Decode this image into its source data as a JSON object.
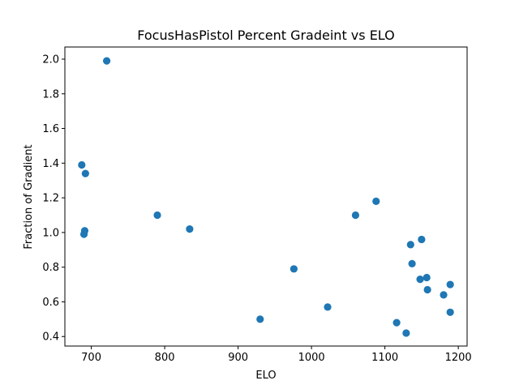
{
  "chart_data": {
    "type": "scatter",
    "title": "FocusHasPistol Percent Gradeint vs ELO",
    "xlabel": "ELO",
    "ylabel": "Fraction of Gradient",
    "xlim": [
      664,
      1212
    ],
    "ylim": [
      0.345,
      2.07
    ],
    "xticks": [
      700,
      800,
      900,
      1000,
      1100,
      1200
    ],
    "yticks": [
      0.4,
      0.6,
      0.8,
      1.0,
      1.2,
      1.4,
      1.6,
      1.8,
      2.0
    ],
    "xtick_labels": [
      "700",
      "800",
      "900",
      "1000",
      "1100",
      "1200"
    ],
    "ytick_labels": [
      "0.4",
      "0.6",
      "0.8",
      "1.0",
      "1.2",
      "1.4",
      "1.6",
      "1.8",
      "2.0"
    ],
    "grid": false,
    "legend": "none",
    "marker_color": "#1f77b4",
    "points": [
      {
        "x": 721,
        "y": 1.99
      },
      {
        "x": 687,
        "y": 1.39
      },
      {
        "x": 692,
        "y": 1.34
      },
      {
        "x": 790,
        "y": 1.1
      },
      {
        "x": 691,
        "y": 1.01
      },
      {
        "x": 690,
        "y": 0.99
      },
      {
        "x": 834,
        "y": 1.02
      },
      {
        "x": 930,
        "y": 0.5
      },
      {
        "x": 976,
        "y": 0.79
      },
      {
        "x": 1022,
        "y": 0.57
      },
      {
        "x": 1060,
        "y": 1.1
      },
      {
        "x": 1088,
        "y": 1.18
      },
      {
        "x": 1116,
        "y": 0.48
      },
      {
        "x": 1129,
        "y": 0.42
      },
      {
        "x": 1135,
        "y": 0.93
      },
      {
        "x": 1137,
        "y": 0.82
      },
      {
        "x": 1150,
        "y": 0.96
      },
      {
        "x": 1148,
        "y": 0.73
      },
      {
        "x": 1157,
        "y": 0.74
      },
      {
        "x": 1158,
        "y": 0.67
      },
      {
        "x": 1180,
        "y": 0.64
      },
      {
        "x": 1189,
        "y": 0.7
      },
      {
        "x": 1189,
        "y": 0.54
      }
    ]
  }
}
